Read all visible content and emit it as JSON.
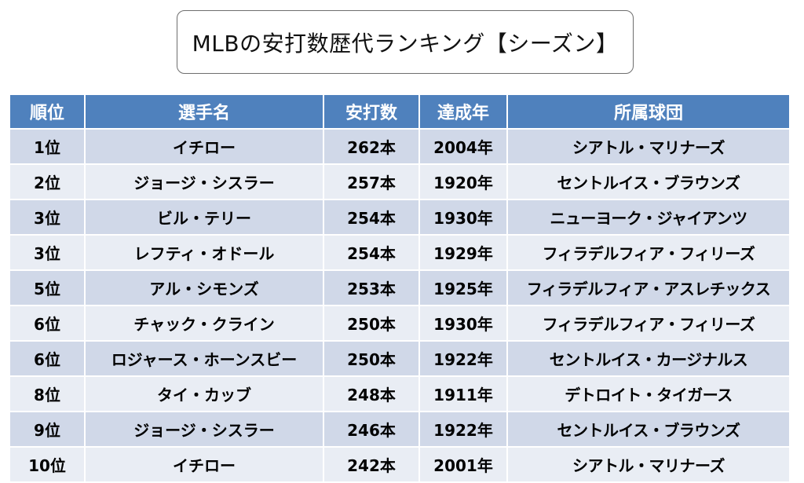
{
  "title": "MLBの安打数歴代ランキング【シーズン】",
  "table": {
    "headers": {
      "rank": "順位",
      "player": "選手名",
      "hits": "安打数",
      "year": "達成年",
      "team": "所属球団"
    },
    "rows": [
      {
        "rank": "1位",
        "player": "イチロー",
        "hits": "262本",
        "year": "2004年",
        "team": "シアトル・マリナーズ"
      },
      {
        "rank": "2位",
        "player": "ジョージ・シスラー",
        "hits": "257本",
        "year": "1920年",
        "team": "セントルイス・ブラウンズ"
      },
      {
        "rank": "3位",
        "player": "ビル・テリー",
        "hits": "254本",
        "year": "1930年",
        "team": "ニューヨーク・ジャイアンツ"
      },
      {
        "rank": "3位",
        "player": "レフティ・オドール",
        "hits": "254本",
        "year": "1929年",
        "team": "フィラデルフィア・フィリーズ"
      },
      {
        "rank": "5位",
        "player": "アル・シモンズ",
        "hits": "253本",
        "year": "1925年",
        "team": "フィラデルフィア・アスレチックス"
      },
      {
        "rank": "6位",
        "player": "チャック・クライン",
        "hits": "250本",
        "year": "1930年",
        "team": "フィラデルフィア・フィリーズ"
      },
      {
        "rank": "6位",
        "player": "ロジャース・ホーンスビー",
        "hits": "250本",
        "year": "1922年",
        "team": "セントルイス・カージナルス"
      },
      {
        "rank": "8位",
        "player": "タイ・カッブ",
        "hits": "248本",
        "year": "1911年",
        "team": "デトロイト・タイガース"
      },
      {
        "rank": "9位",
        "player": "ジョージ・シスラー",
        "hits": "246本",
        "year": "1922年",
        "team": "セントルイス・ブラウンズ"
      },
      {
        "rank": "10位",
        "player": "イチロー",
        "hits": "242本",
        "year": "2001年",
        "team": "シアトル・マリナーズ"
      }
    ]
  },
  "colors": {
    "header_bg": "#4f81bd",
    "row_odd_bg": "#d0d8e8",
    "row_even_bg": "#e9edf4",
    "title_border": "#6e6e6e"
  }
}
